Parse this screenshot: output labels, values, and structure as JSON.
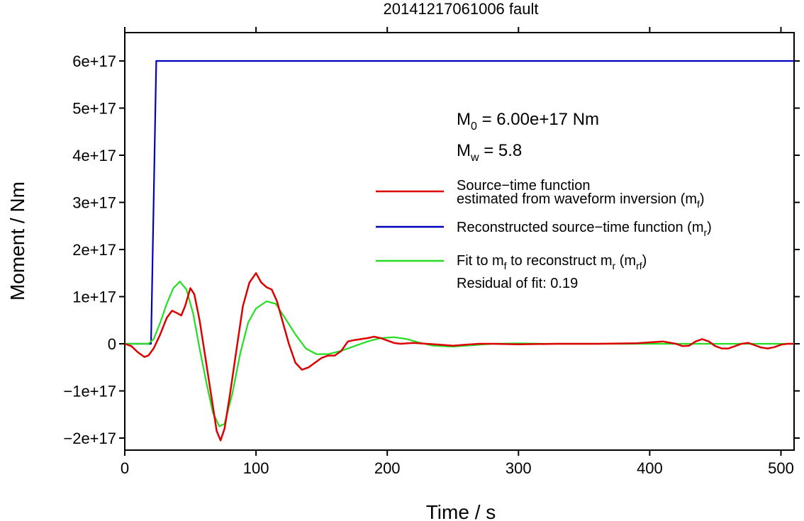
{
  "chart_data": {
    "type": "line",
    "title": "20141217061006 fault",
    "xlabel": "Time / s",
    "ylabel": "Moment / Nm",
    "xlim": [
      0,
      510
    ],
    "ylim": [
      -2.25e+17,
      6.6e+17
    ],
    "x_ticks": [
      0,
      100,
      200,
      300,
      400,
      500
    ],
    "x_tick_labels": [
      "0",
      "100",
      "200",
      "300",
      "400",
      "500"
    ],
    "y_ticks": [
      -2e+17,
      -1e+17,
      0,
      1e+17,
      2e+17,
      3e+17,
      4e+17,
      5e+17,
      6e+17
    ],
    "y_tick_labels": [
      "−2e+17",
      "−1e+17",
      "0",
      "1e+17",
      "2e+17",
      "3e+17",
      "4e+17",
      "5e+17",
      "6e+17"
    ],
    "grid": false,
    "legend_position": "right",
    "annotations": {
      "m0": {
        "main": "M",
        "sub": "0",
        "rest": " = 6.00e+17 Nm"
      },
      "mw": {
        "main": "M",
        "sub": "w",
        "rest": " = 5.8"
      },
      "residual": "Residual of fit: 0.19"
    },
    "series": [
      {
        "name_line1": "Source−time function",
        "name_line2_main": "estimated from waveform inversion (m",
        "name_line2_sub": "f",
        "name_line2_end": ")",
        "color": "#dd0000",
        "points": [
          [
            0,
            0
          ],
          [
            5,
            -5000000000000000.0
          ],
          [
            10,
            -1.8e+16
          ],
          [
            15,
            -2.8e+16
          ],
          [
            18,
            -2.5e+16
          ],
          [
            22,
            -1e+16
          ],
          [
            27,
            2e+16
          ],
          [
            32,
            5.5e+16
          ],
          [
            36,
            7e+16
          ],
          [
            40,
            6.5e+16
          ],
          [
            43,
            6e+16
          ],
          [
            46,
            8e+16
          ],
          [
            50,
            1.18e+17
          ],
          [
            53,
            1.05e+17
          ],
          [
            57,
            5e+16
          ],
          [
            62,
            -4e+16
          ],
          [
            67,
            -1.3e+17
          ],
          [
            70,
            -1.85e+17
          ],
          [
            73,
            -2.05e+17
          ],
          [
            76,
            -1.8e+17
          ],
          [
            80,
            -1.1e+17
          ],
          [
            85,
            -1.5e+16
          ],
          [
            90,
            8e+16
          ],
          [
            95,
            1.3e+17
          ],
          [
            100,
            1.5e+17
          ],
          [
            104,
            1.3e+17
          ],
          [
            108,
            1.2e+17
          ],
          [
            112,
            1.15e+17
          ],
          [
            116,
            9e+16
          ],
          [
            120,
            5e+16
          ],
          [
            125,
            0.0
          ],
          [
            130,
            -4e+16
          ],
          [
            135,
            -5.5e+16
          ],
          [
            140,
            -5e+16
          ],
          [
            145,
            -4e+16
          ],
          [
            150,
            -3e+16
          ],
          [
            155,
            -2.5e+16
          ],
          [
            160,
            -2.5e+16
          ],
          [
            165,
            -1.5e+16
          ],
          [
            170,
            5000000000000000.0
          ],
          [
            175,
            8000000000000000.0
          ],
          [
            180,
            1e+16
          ],
          [
            185,
            1.2e+16
          ],
          [
            190,
            1.5e+16
          ],
          [
            195,
            1.2e+16
          ],
          [
            200,
            7000000000000000.0
          ],
          [
            205,
            2000000000000000.0
          ],
          [
            210,
            0.0
          ],
          [
            220,
            2000000000000000.0
          ],
          [
            230,
            0.0
          ],
          [
            240,
            -2000000000000000.0
          ],
          [
            250,
            -4000000000000000.0
          ],
          [
            260,
            -2000000000000000.0
          ],
          [
            270,
            0.0
          ],
          [
            280,
            0.0
          ],
          [
            300,
            -1000000000000000.0
          ],
          [
            330,
            0.0
          ],
          [
            360,
            0.0
          ],
          [
            390,
            1000000000000000.0
          ],
          [
            400,
            3000000000000000.0
          ],
          [
            410,
            5000000000000000.0
          ],
          [
            420,
            0.0
          ],
          [
            425,
            -5000000000000000.0
          ],
          [
            430,
            -4000000000000000.0
          ],
          [
            435,
            5000000000000000.0
          ],
          [
            440,
            1e+16
          ],
          [
            445,
            5000000000000000.0
          ],
          [
            450,
            -5000000000000000.0
          ],
          [
            455,
            -1e+16
          ],
          [
            460,
            -1e+16
          ],
          [
            465,
            -5000000000000000.0
          ],
          [
            470,
            0.0
          ],
          [
            475,
            2000000000000000.0
          ],
          [
            480,
            -3000000000000000.0
          ],
          [
            485,
            -8000000000000000.0
          ],
          [
            490,
            -1e+16
          ],
          [
            495,
            -7000000000000000.0
          ],
          [
            500,
            -2000000000000000.0
          ],
          [
            505,
            0.0
          ],
          [
            510,
            0.0
          ]
        ]
      },
      {
        "name_main": "Reconstructed source−time function (m",
        "name_sub": "r",
        "name_end": ")",
        "color": "#0000bb",
        "points": [
          [
            0,
            0
          ],
          [
            20,
            0
          ],
          [
            24,
            6e+17
          ],
          [
            510,
            6e+17
          ]
        ]
      },
      {
        "name_main": "Fit to m",
        "name_sub1": "f",
        "name_mid": " to reconstruct m",
        "name_sub2": "r",
        "name_mid2": " (m",
        "name_sub3": "rf",
        "name_end": ")",
        "color": "#22dd22",
        "points": [
          [
            0,
            0
          ],
          [
            18,
            0
          ],
          [
            22,
            1e+16
          ],
          [
            27,
            4.5e+16
          ],
          [
            32,
            8.5e+16
          ],
          [
            37,
            1.18e+17
          ],
          [
            42,
            1.32e+17
          ],
          [
            47,
            1.15e+17
          ],
          [
            52,
            6.5e+16
          ],
          [
            57,
            -1e+16
          ],
          [
            62,
            -8e+16
          ],
          [
            67,
            -1.45e+17
          ],
          [
            72,
            -1.75e+17
          ],
          [
            76,
            -1.7e+17
          ],
          [
            82,
            -1.05e+17
          ],
          [
            88,
            -2e+16
          ],
          [
            94,
            4.5e+16
          ],
          [
            100,
            7.5e+16
          ],
          [
            108,
            9e+16
          ],
          [
            115,
            8.5e+16
          ],
          [
            122,
            5.5e+16
          ],
          [
            130,
            2e+16
          ],
          [
            138,
            -1e+16
          ],
          [
            146,
            -2.2e+16
          ],
          [
            155,
            -2.2e+16
          ],
          [
            165,
            -1.5e+16
          ],
          [
            175,
            -5000000000000000.0
          ],
          [
            185,
            5000000000000000.0
          ],
          [
            195,
            1.2e+16
          ],
          [
            205,
            1.4e+16
          ],
          [
            215,
            1e+16
          ],
          [
            225,
            2000000000000000.0
          ],
          [
            235,
            -4000000000000000.0
          ],
          [
            250,
            -6000000000000000.0
          ],
          [
            265,
            -3000000000000000.0
          ],
          [
            280,
            0.0
          ],
          [
            300,
            1000000000000000.0
          ],
          [
            320,
            0.0
          ],
          [
            350,
            0.0
          ],
          [
            400,
            0.0
          ],
          [
            450,
            0.0
          ],
          [
            510,
            0.0
          ]
        ]
      }
    ]
  }
}
